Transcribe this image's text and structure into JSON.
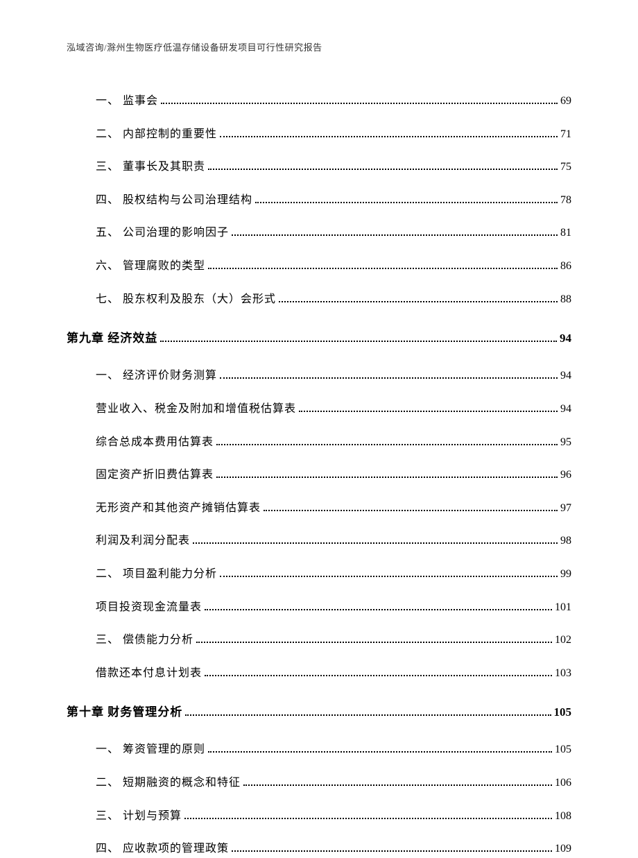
{
  "header_text": "泓域咨询/滁州生物医疗低温存储设备研发项目可行性研究报告",
  "entries": [
    {
      "type": "sub",
      "label": "一、 监事会",
      "page": "69"
    },
    {
      "type": "sub",
      "label": "二、 内部控制的重要性",
      "page": "71"
    },
    {
      "type": "sub",
      "label": "三、 董事长及其职责",
      "page": "75"
    },
    {
      "type": "sub",
      "label": "四、 股权结构与公司治理结构",
      "page": "78"
    },
    {
      "type": "sub",
      "label": "五、 公司治理的影响因子",
      "page": "81"
    },
    {
      "type": "sub",
      "label": "六、 管理腐败的类型",
      "page": "86"
    },
    {
      "type": "sub",
      "label": "七、 股东权利及股东（大）会形式",
      "page": "88"
    },
    {
      "type": "chapter",
      "label": "第九章 经济效益",
      "page": "94"
    },
    {
      "type": "sub",
      "label": "一、 经济评价财务测算",
      "page": "94"
    },
    {
      "type": "sub2",
      "label": "营业收入、税金及附加和增值税估算表",
      "page": "94"
    },
    {
      "type": "sub2",
      "label": "综合总成本费用估算表",
      "page": "95"
    },
    {
      "type": "sub2",
      "label": "固定资产折旧费估算表",
      "page": "96"
    },
    {
      "type": "sub2",
      "label": "无形资产和其他资产摊销估算表",
      "page": "97"
    },
    {
      "type": "sub2",
      "label": "利润及利润分配表",
      "page": "98"
    },
    {
      "type": "sub",
      "label": "二、 项目盈利能力分析",
      "page": "99"
    },
    {
      "type": "sub2",
      "label": "项目投资现金流量表",
      "page": "101"
    },
    {
      "type": "sub",
      "label": "三、 偿债能力分析",
      "page": "102"
    },
    {
      "type": "sub2",
      "label": "借款还本付息计划表",
      "page": "103"
    },
    {
      "type": "chapter",
      "label": "第十章 财务管理分析",
      "page": "105"
    },
    {
      "type": "sub",
      "label": "一、 筹资管理的原则",
      "page": "105"
    },
    {
      "type": "sub",
      "label": "二、 短期融资的概念和特征",
      "page": "106"
    },
    {
      "type": "sub",
      "label": "三、 计划与预算",
      "page": "108"
    },
    {
      "type": "sub",
      "label": "四、 应收款项的管理政策",
      "page": "109"
    }
  ]
}
